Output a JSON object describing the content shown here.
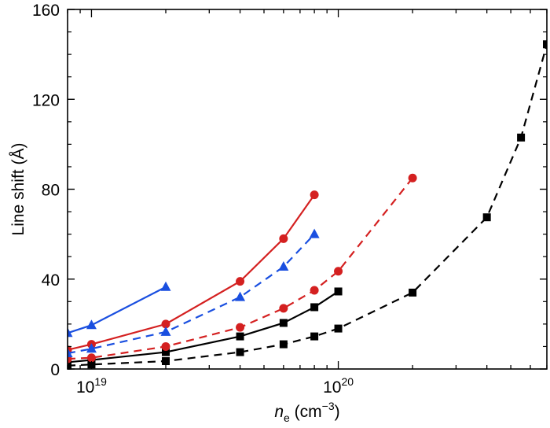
{
  "chart_data": {
    "type": "line",
    "title": "",
    "xlabel": "n_e (cm^-3)",
    "ylabel": "Line shift (Å)",
    "xscale": "log",
    "xlim": [
      8e+18,
      7e+20
    ],
    "ylim": [
      0,
      160
    ],
    "xticks": [
      {
        "value": 1e+19,
        "label_base": "10",
        "label_exp": "19"
      },
      {
        "value": 1e+20,
        "label_base": "10",
        "label_exp": "20"
      }
    ],
    "yticks": [
      0,
      40,
      80,
      120,
      160
    ],
    "legend": "none",
    "grid": false,
    "series": [
      {
        "color": "#000000",
        "dash": "dashed",
        "marker": "square",
        "x": [
          8e+18,
          1e+19,
          2e+19,
          4e+19,
          6e+19,
          8e+19,
          1e+20,
          2e+20,
          4e+20,
          5.5e+20,
          7e+20
        ],
        "y": [
          1.5,
          2,
          3.5,
          7.5,
          11,
          14.5,
          18,
          34,
          67.5,
          103,
          144.5
        ]
      },
      {
        "color": "#000000",
        "dash": "solid",
        "marker": "square",
        "x": [
          8e+18,
          1e+19,
          2e+19,
          4e+19,
          6e+19,
          8e+19,
          1e+20
        ],
        "y": [
          3,
          4,
          7.5,
          14.5,
          20.5,
          27.5,
          34.5
        ]
      },
      {
        "color": "#d42020",
        "dash": "dashed",
        "marker": "circle",
        "x": [
          8e+18,
          1e+19,
          2e+19,
          4e+19,
          6e+19,
          8e+19,
          1e+20,
          2e+20
        ],
        "y": [
          4.5,
          5,
          10,
          18.5,
          27,
          35,
          43.5,
          85
        ]
      },
      {
        "color": "#d42020",
        "dash": "solid",
        "marker": "circle",
        "x": [
          8e+18,
          1e+19,
          2e+19,
          4e+19,
          6e+19,
          8e+19
        ],
        "y": [
          8.5,
          11,
          20,
          39,
          58,
          77.5
        ]
      },
      {
        "color": "#1a4fe0",
        "dash": "dashed",
        "marker": "triangle",
        "x": [
          8e+18,
          1e+19,
          2e+19,
          4e+19,
          6e+19,
          8e+19
        ],
        "y": [
          7,
          9,
          16.5,
          32,
          45.5,
          60
        ]
      },
      {
        "color": "#1a4fe0",
        "dash": "solid",
        "marker": "triangle",
        "x": [
          8e+18,
          1e+19,
          2e+19
        ],
        "y": [
          16,
          19.5,
          36.5
        ]
      }
    ]
  }
}
